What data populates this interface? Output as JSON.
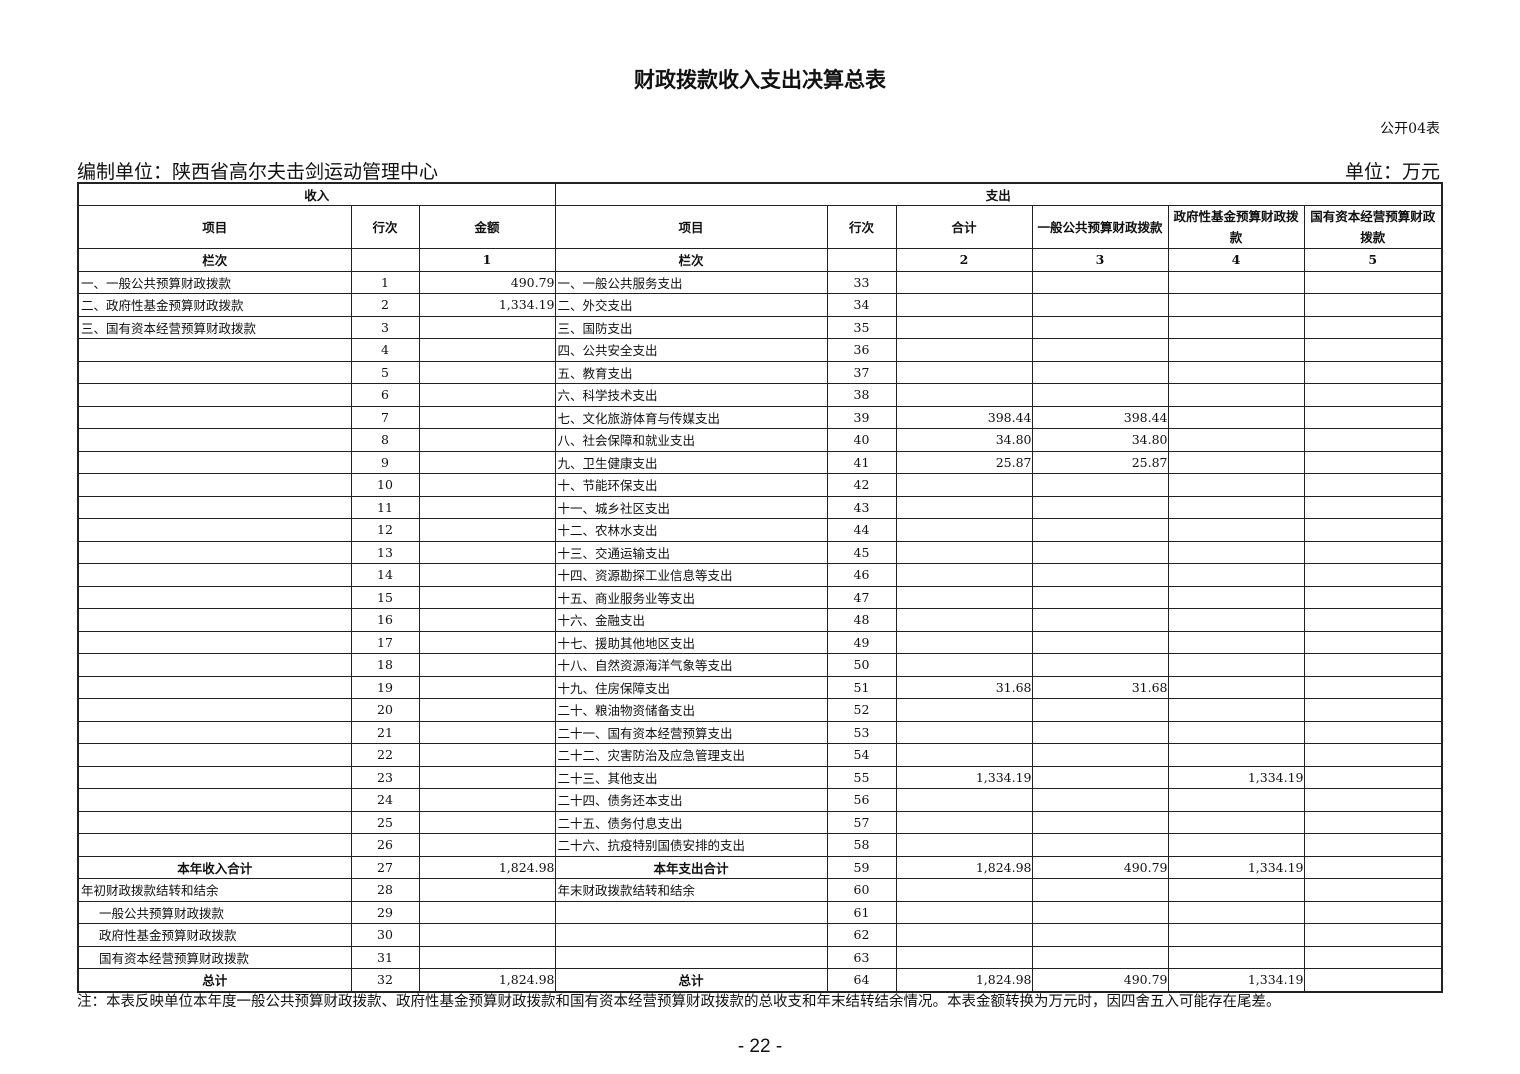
{
  "title": "财政拨款收入支出决算总表",
  "table_code": "公开04表",
  "unit_label": "编制单位：陕西省高尔夫击剑运动管理中心",
  "currency_label": "单位：万元",
  "header": {
    "income": "收入",
    "expense": "支出",
    "columns": [
      "项目",
      "行次",
      "金额",
      "项目",
      "行次",
      "合计",
      "一般公共预算财政拨款",
      "政府性基金预算财政拨款",
      "国有资本经营预算财政拨款"
    ],
    "index_row": [
      "栏次",
      "",
      "1",
      "栏次",
      "",
      "2",
      "3",
      "4",
      "5"
    ]
  },
  "rows": [
    [
      "一、一般公共预算财政拨款",
      "1",
      "490.79",
      "一、一般公共服务支出",
      "33",
      "",
      "",
      "",
      ""
    ],
    [
      "二、政府性基金预算财政拨款",
      "2",
      "1,334.19",
      "二、外交支出",
      "34",
      "",
      "",
      "",
      ""
    ],
    [
      "三、国有资本经营预算财政拨款",
      "3",
      "",
      "三、国防支出",
      "35",
      "",
      "",
      "",
      ""
    ],
    [
      "",
      "4",
      "",
      "四、公共安全支出",
      "36",
      "",
      "",
      "",
      ""
    ],
    [
      "",
      "5",
      "",
      "五、教育支出",
      "37",
      "",
      "",
      "",
      ""
    ],
    [
      "",
      "6",
      "",
      "六、科学技术支出",
      "38",
      "",
      "",
      "",
      ""
    ],
    [
      "",
      "7",
      "",
      "七、文化旅游体育与传媒支出",
      "39",
      "398.44",
      "398.44",
      "",
      ""
    ],
    [
      "",
      "8",
      "",
      "八、社会保障和就业支出",
      "40",
      "34.80",
      "34.80",
      "",
      ""
    ],
    [
      "",
      "9",
      "",
      "九、卫生健康支出",
      "41",
      "25.87",
      "25.87",
      "",
      ""
    ],
    [
      "",
      "10",
      "",
      "十、节能环保支出",
      "42",
      "",
      "",
      "",
      ""
    ],
    [
      "",
      "11",
      "",
      "十一、城乡社区支出",
      "43",
      "",
      "",
      "",
      ""
    ],
    [
      "",
      "12",
      "",
      "十二、农林水支出",
      "44",
      "",
      "",
      "",
      ""
    ],
    [
      "",
      "13",
      "",
      "十三、交通运输支出",
      "45",
      "",
      "",
      "",
      ""
    ],
    [
      "",
      "14",
      "",
      "十四、资源勘探工业信息等支出",
      "46",
      "",
      "",
      "",
      ""
    ],
    [
      "",
      "15",
      "",
      "十五、商业服务业等支出",
      "47",
      "",
      "",
      "",
      ""
    ],
    [
      "",
      "16",
      "",
      "十六、金融支出",
      "48",
      "",
      "",
      "",
      ""
    ],
    [
      "",
      "17",
      "",
      "十七、援助其他地区支出",
      "49",
      "",
      "",
      "",
      ""
    ],
    [
      "",
      "18",
      "",
      "十八、自然资源海洋气象等支出",
      "50",
      "",
      "",
      "",
      ""
    ],
    [
      "",
      "19",
      "",
      "十九、住房保障支出",
      "51",
      "31.68",
      "31.68",
      "",
      ""
    ],
    [
      "",
      "20",
      "",
      "二十、粮油物资储备支出",
      "52",
      "",
      "",
      "",
      ""
    ],
    [
      "",
      "21",
      "",
      "二十一、国有资本经营预算支出",
      "53",
      "",
      "",
      "",
      ""
    ],
    [
      "",
      "22",
      "",
      "二十二、灾害防治及应急管理支出",
      "54",
      "",
      "",
      "",
      ""
    ],
    [
      "",
      "23",
      "",
      "二十三、其他支出",
      "55",
      "1,334.19",
      "",
      "1,334.19",
      ""
    ],
    [
      "",
      "24",
      "",
      "二十四、债务还本支出",
      "56",
      "",
      "",
      "",
      ""
    ],
    [
      "",
      "25",
      "",
      "二十五、债务付息支出",
      "57",
      "",
      "",
      "",
      ""
    ],
    [
      "",
      "26",
      "",
      "二十六、抗疫特别国债安排的支出",
      "58",
      "",
      "",
      "",
      ""
    ],
    [
      "本年收入合计",
      "27",
      "1,824.98",
      "本年支出合计",
      "59",
      "1,824.98",
      "490.79",
      "1,334.19",
      ""
    ],
    [
      "年初财政拨款结转和结余",
      "28",
      "",
      "年末财政拨款结转和结余",
      "60",
      "",
      "",
      "",
      ""
    ],
    [
      "一般公共预算财政拨款",
      "29",
      "",
      "",
      "61",
      "",
      "",
      "",
      ""
    ],
    [
      "政府性基金预算财政拨款",
      "30",
      "",
      "",
      "62",
      "",
      "",
      "",
      ""
    ],
    [
      "国有资本经营预算财政拨款",
      "31",
      "",
      "",
      "63",
      "",
      "",
      "",
      ""
    ],
    [
      "总计",
      "32",
      "1,824.98",
      "总计",
      "64",
      "1,824.98",
      "490.79",
      "1,334.19",
      ""
    ]
  ],
  "note": "注：本表反映单位本年度一般公共预算财政拨款、政府性基金预算财政拨款和国有资本经营预算财政拨款的总收支和年末结转结余情况。本表金额转换为万元时，因四舍五入可能存在尾差。",
  "page_number": "- 22 -"
}
